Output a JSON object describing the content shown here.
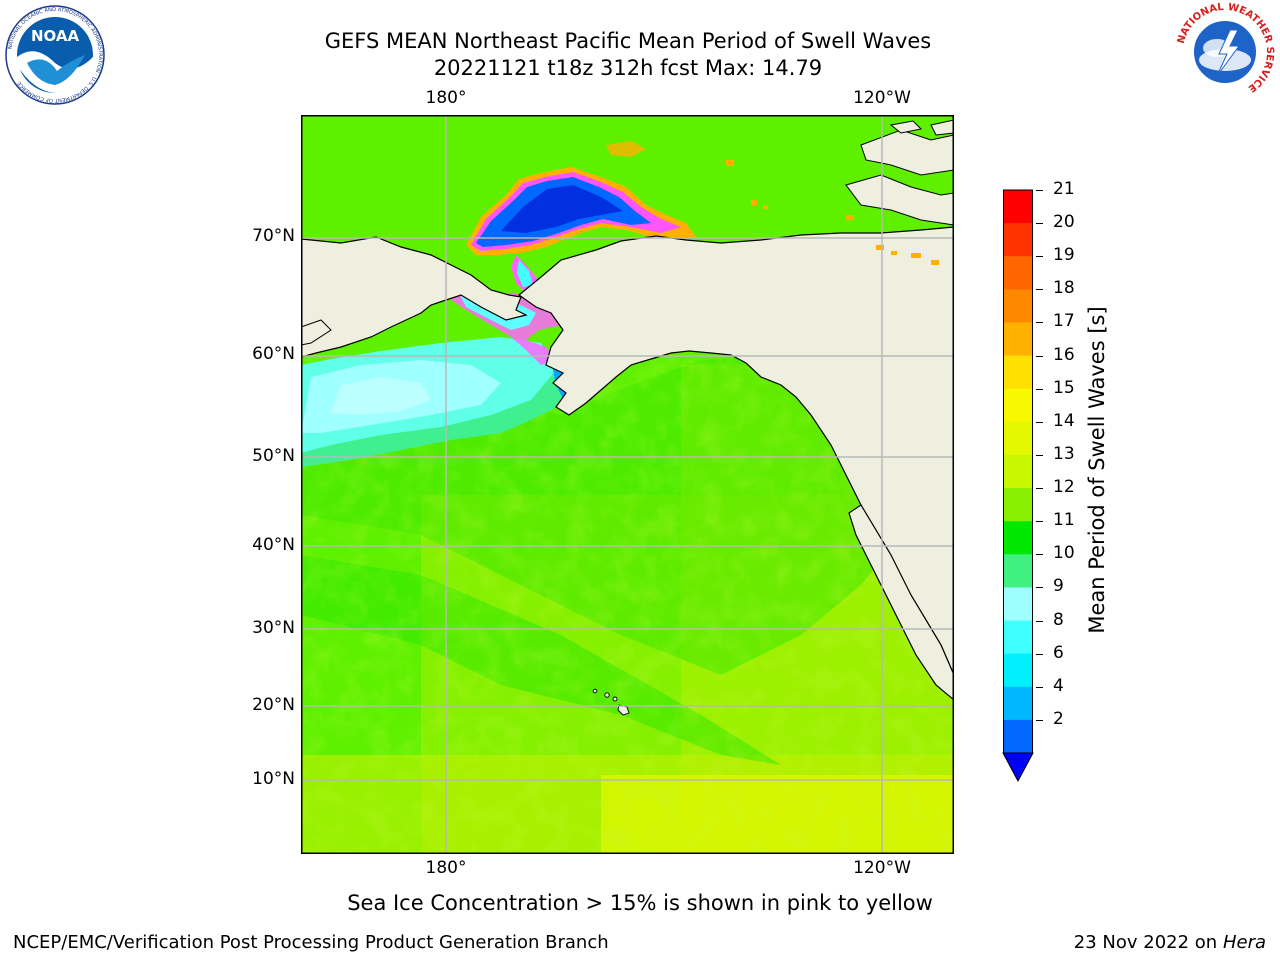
{
  "header": {
    "title_line1": "GEFS MEAN Northeast Pacific Mean Period of Swell Waves",
    "title_line2": "20221121 t18z 312h fcst   Max: 14.79"
  },
  "logos": {
    "noaa_logo_text": "NOAA",
    "noaa_ring_text": "NATIONAL OCEANIC AND ATMOSPHERIC ADMINISTRATION · U.S. DEPARTMENT OF COMMERCE",
    "nws_ring_text": "NATIONAL WEATHER SERVICE"
  },
  "map": {
    "lon_labels": [
      "180°",
      "120°W"
    ],
    "lat_labels": [
      "70°N",
      "60°N",
      "50°N",
      "40°N",
      "30°N",
      "20°N",
      "10°N"
    ],
    "land_color": "#efefdf",
    "grid_color": "#b8b8b8"
  },
  "colorbar": {
    "label": "Mean Period of Swell Waves [s]",
    "ticks": [
      "21",
      "20",
      "19",
      "18",
      "17",
      "16",
      "15",
      "14",
      "13",
      "12",
      "11",
      "10",
      "9",
      "8",
      "6",
      "4",
      "2"
    ],
    "colors": [
      "#ff0000",
      "#ff3300",
      "#ff6600",
      "#ff8800",
      "#ffb000",
      "#ffe000",
      "#f8f800",
      "#e4f800",
      "#c8f800",
      "#88f000",
      "#00e800",
      "#40f080",
      "#a0ffff",
      "#40ffff",
      "#00f0ff",
      "#00b8ff",
      "#0068ff"
    ],
    "extend_color": "#0000ff"
  },
  "footer": {
    "ice_note": "Sea Ice Concentration > 15% is shown in pink to yellow",
    "credit": "NCEP/EMC/Verification Post Processing Product Generation Branch",
    "date": "23 Nov 2022 on",
    "host": "Hera"
  }
}
